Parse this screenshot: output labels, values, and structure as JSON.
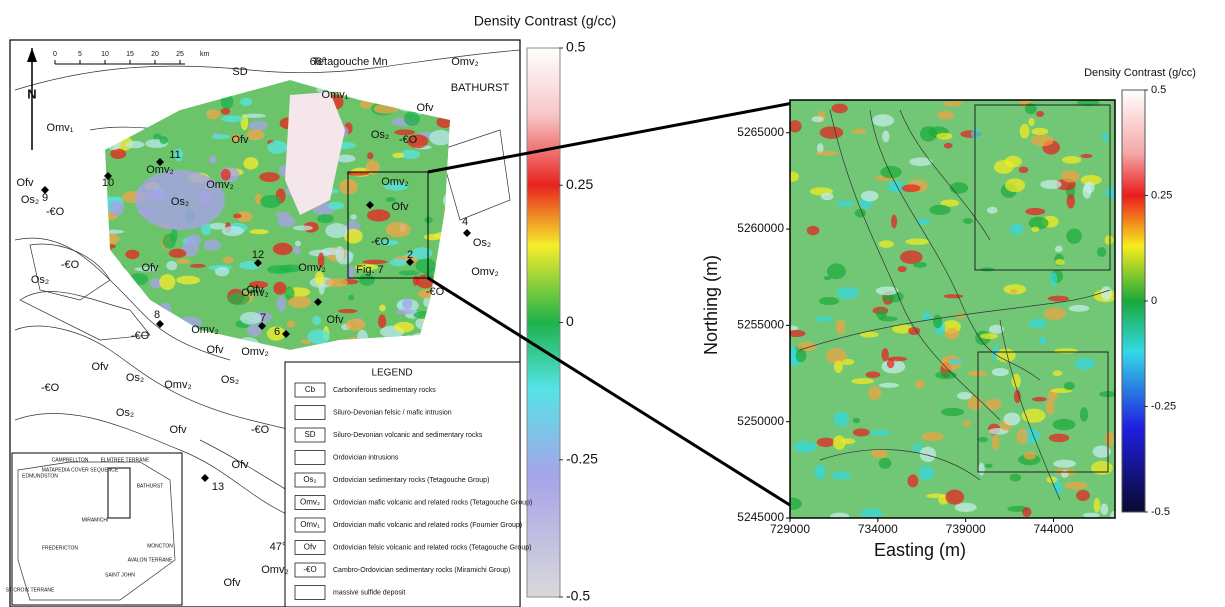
{
  "left_map": {
    "scale_bar": {
      "labels": [
        "0",
        "5",
        "10",
        "15",
        "20",
        "25"
      ],
      "unit": "km"
    },
    "north": "N",
    "labels": [
      "SD",
      "66°",
      "Tetagouche Mn",
      "Omv₂",
      "BATHURST",
      "Omv₁",
      "Ofv",
      "Omv₁",
      "11",
      "Omv₂",
      "Ofv",
      "Os₂",
      "-€O",
      "Os₂",
      "Ofv",
      "9",
      "-€O",
      "10",
      "Omv₂",
      "Os₂",
      "Omv₂",
      "Ofv",
      "4",
      "Os₂",
      "Omv₂",
      "-€O",
      "2",
      "12",
      "Omv₂",
      "Fig. 7",
      "Ofv",
      "-€O",
      "Os₂",
      "Ofv",
      "Omv₂",
      "-€O",
      "8",
      "-€O",
      "Omv₂",
      "7",
      "6",
      "Ofv",
      "Ofv",
      "Omv₂",
      "Ofv",
      "Os₂",
      "Omv₂",
      "-€O",
      "Os₂",
      "Os₂",
      "Ofv",
      "-€O",
      "Ofv",
      "13",
      "47°",
      "Ofv",
      "Omv₂"
    ],
    "inset_labels": [
      "CAMPBELLTON",
      "ELMTREE TERRANE",
      "MATAPEDIA COVER SEQUENCE",
      "EDMUNDSTON",
      "BATHURST",
      "MIRAMICHI",
      "FREDERICTON",
      "MONCTON",
      "SAINT JOHN",
      "AVALON TERRANE",
      "ST CROIX TERRANE"
    ],
    "legend": {
      "title": "LEGEND",
      "items": [
        {
          "code": "Cb",
          "text": "Carboniferous sedimentary rocks"
        },
        {
          "code": "",
          "text": "Siluro-Devonian felsic / mafic intrusion"
        },
        {
          "code": "SD",
          "text": "Siluro-Devonian volcanic and sedimentary rocks"
        },
        {
          "code": "",
          "text": "Ordovician intrusions"
        },
        {
          "code": "Os₂",
          "text": "Ordovician sedimentary rocks (Tetagouche Group)"
        },
        {
          "code": "Omv₂",
          "text": "Ordovician mafic volcanic and related rocks (Tetagouche Group)"
        },
        {
          "code": "Omv₁",
          "text": "Ordovician mafic volcanic and related rocks (Fournier Group)"
        },
        {
          "code": "Ofv",
          "text": "Ordovician felsic volcanic and related rocks (Tetagouche Group)"
        },
        {
          "code": "-€O",
          "text": "Cambro-Ordovician sedimentary rocks (Miramichi Group)"
        },
        {
          "code": "",
          "text": "massive sulfide deposit"
        }
      ]
    }
  },
  "left_colorbar": {
    "title": "Density Contrast (g/cc)",
    "lim": [
      -0.5,
      0.5
    ],
    "ticks": [
      0.5,
      0.25,
      0,
      -0.25,
      -0.5
    ]
  },
  "right_map": {
    "xlabel": "Easting (m)",
    "ylabel": "Northing (m)",
    "xlim": [
      729000,
      747500
    ],
    "ylim": [
      5245000,
      5266700
    ],
    "xticks": [
      729000,
      734000,
      739000,
      744000
    ],
    "yticks": [
      5245000,
      5250000,
      5255000,
      5260000,
      5265000
    ]
  },
  "right_colorbar": {
    "title": "Density Contrast (g/cc)",
    "lim": [
      -0.5,
      0.5
    ],
    "ticks": [
      0.5,
      0.25,
      0,
      -0.25,
      -0.5
    ]
  }
}
